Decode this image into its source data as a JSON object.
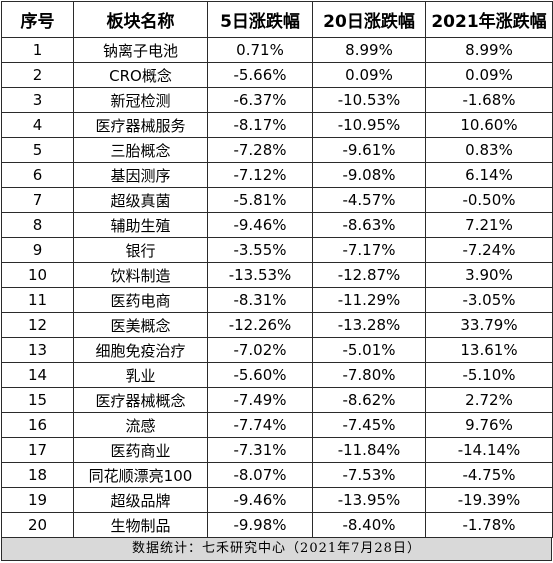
{
  "table": {
    "headers": [
      "序号",
      "板块名称",
      "5日涨跌幅",
      "20日涨跌幅",
      "2021年涨跌幅"
    ],
    "rows": [
      [
        "1",
        "钠离子电池",
        "0.71%",
        "8.99%",
        "8.99%"
      ],
      [
        "2",
        "CRO概念",
        "-5.66%",
        "0.09%",
        "0.09%"
      ],
      [
        "3",
        "新冠检测",
        "-6.37%",
        "-10.53%",
        "-1.68%"
      ],
      [
        "4",
        "医疗器械服务",
        "-8.17%",
        "-10.95%",
        "10.60%"
      ],
      [
        "5",
        "三胎概念",
        "-7.28%",
        "-9.61%",
        "0.83%"
      ],
      [
        "6",
        "基因测序",
        "-7.12%",
        "-9.08%",
        "6.14%"
      ],
      [
        "7",
        "超级真菌",
        "-5.81%",
        "-4.57%",
        "-0.50%"
      ],
      [
        "8",
        "辅助生殖",
        "-9.46%",
        "-8.63%",
        "7.21%"
      ],
      [
        "9",
        "银行",
        "-3.55%",
        "-7.17%",
        "-7.24%"
      ],
      [
        "10",
        "饮料制造",
        "-13.53%",
        "-12.87%",
        "3.90%"
      ],
      [
        "11",
        "医药电商",
        "-8.31%",
        "-11.29%",
        "-3.05%"
      ],
      [
        "12",
        "医美概念",
        "-12.26%",
        "-13.28%",
        "33.79%"
      ],
      [
        "13",
        "细胞免疫治疗",
        "-7.02%",
        "-5.01%",
        "13.61%"
      ],
      [
        "14",
        "乳业",
        "-5.60%",
        "-7.80%",
        "-5.10%"
      ],
      [
        "15",
        "医疗器械概念",
        "-7.49%",
        "-8.62%",
        "2.72%"
      ],
      [
        "16",
        "流感",
        "-7.74%",
        "-7.45%",
        "9.76%"
      ],
      [
        "17",
        "医药商业",
        "-7.31%",
        "-11.84%",
        "-14.14%"
      ],
      [
        "18",
        "同花顺漂亮100",
        "-8.07%",
        "-7.53%",
        "-4.75%"
      ],
      [
        "19",
        "超级品牌",
        "-9.46%",
        "-13.95%",
        "-19.39%"
      ],
      [
        "20",
        "生物制品",
        "-9.98%",
        "-8.40%",
        "-1.78%"
      ]
    ]
  },
  "footer": {
    "text": "数据统计：七禾研究中心（2021年7月28日）"
  },
  "colors": {
    "border": "#2b2b2b",
    "footer_background": "#d9d9d9"
  }
}
